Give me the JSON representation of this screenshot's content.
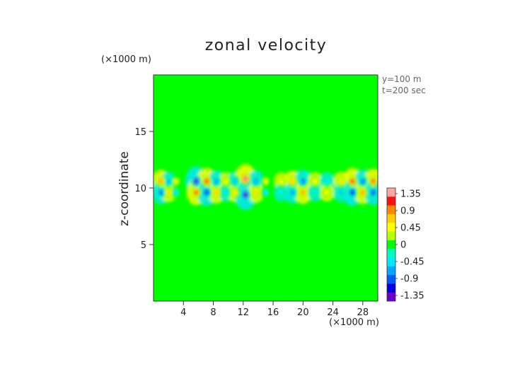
{
  "chart_data": {
    "type": "heatmap",
    "title": "zonal velocity",
    "ylabel": "z-coordinate",
    "y_unit": "(×1000 m)",
    "x_unit": "(×1000 m)",
    "annotations": [
      "y=100 m",
      "t=200 sec"
    ],
    "xlim": [
      0,
      30
    ],
    "ylim": [
      0,
      20
    ],
    "x_ticks": [
      4,
      8,
      12,
      16,
      20,
      24,
      28
    ],
    "y_ticks": [
      5,
      10,
      15
    ],
    "grid": false,
    "legend": "right (colorbar)",
    "colorbar": {
      "range": [
        -1.5,
        1.5
      ],
      "tick_values": [
        1.35,
        0.9,
        0.45,
        0,
        -0.45,
        -0.9,
        -1.35
      ],
      "tick_labels": [
        "1.35",
        "0.9",
        "0.45",
        "0",
        "-0.45",
        "-0.9",
        "-1.35"
      ],
      "colors": [
        "#ffa8a8",
        "#ff1010",
        "#ff8800",
        "#ffd000",
        "#ffff00",
        "#b8ff00",
        "#00ff00",
        "#00ffbb",
        "#00e8ff",
        "#00a8ff",
        "#0058ff",
        "#0000e0",
        "#6a00c8"
      ]
    },
    "background_value": 0,
    "features": [
      {
        "x": 1.0,
        "z": 10.6,
        "value": 0.9
      },
      {
        "x": 1.0,
        "z": 9.6,
        "value": -0.9
      },
      {
        "x": 2.0,
        "z": 10.6,
        "value": -0.6
      },
      {
        "x": 2.0,
        "z": 9.6,
        "value": 0.6
      },
      {
        "x": 3.0,
        "z": 10.6,
        "value": 0.4
      },
      {
        "x": 3.0,
        "z": 9.6,
        "value": -0.4
      },
      {
        "x": 5.7,
        "z": 10.6,
        "value": -1.4
      },
      {
        "x": 5.7,
        "z": 9.6,
        "value": 1.1
      },
      {
        "x": 7.1,
        "z": 10.6,
        "value": 1.2
      },
      {
        "x": 7.1,
        "z": 9.6,
        "value": -1.2
      },
      {
        "x": 8.4,
        "z": 10.6,
        "value": -0.8
      },
      {
        "x": 8.4,
        "z": 9.6,
        "value": 0.8
      },
      {
        "x": 9.7,
        "z": 10.6,
        "value": 0.5
      },
      {
        "x": 9.7,
        "z": 9.6,
        "value": -0.5
      },
      {
        "x": 10.9,
        "z": 10.6,
        "value": -0.6
      },
      {
        "x": 10.9,
        "z": 9.6,
        "value": 0.6
      },
      {
        "x": 12.3,
        "z": 10.8,
        "value": 1.45
      },
      {
        "x": 12.3,
        "z": 9.4,
        "value": -1.5
      },
      {
        "x": 13.7,
        "z": 10.6,
        "value": -0.8
      },
      {
        "x": 13.7,
        "z": 9.6,
        "value": 0.7
      },
      {
        "x": 15.0,
        "z": 10.6,
        "value": 0.4
      },
      {
        "x": 15.0,
        "z": 9.6,
        "value": -0.4
      },
      {
        "x": 17.1,
        "z": 10.6,
        "value": 0.5
      },
      {
        "x": 17.1,
        "z": 9.6,
        "value": -0.5
      },
      {
        "x": 18.6,
        "z": 10.6,
        "value": 0.8
      },
      {
        "x": 18.6,
        "z": 9.6,
        "value": -0.8
      },
      {
        "x": 20.0,
        "z": 10.6,
        "value": -0.9
      },
      {
        "x": 20.0,
        "z": 9.6,
        "value": 0.9
      },
      {
        "x": 21.6,
        "z": 10.6,
        "value": 0.5
      },
      {
        "x": 21.6,
        "z": 9.6,
        "value": -0.5
      },
      {
        "x": 23.2,
        "z": 10.6,
        "value": -0.5
      },
      {
        "x": 23.2,
        "z": 9.6,
        "value": 0.5
      },
      {
        "x": 25.1,
        "z": 10.6,
        "value": 0.6
      },
      {
        "x": 25.1,
        "z": 9.6,
        "value": -0.6
      },
      {
        "x": 26.6,
        "z": 10.6,
        "value": 1.2
      },
      {
        "x": 26.6,
        "z": 9.6,
        "value": -1.2
      },
      {
        "x": 28.0,
        "z": 10.6,
        "value": -0.9
      },
      {
        "x": 28.0,
        "z": 9.6,
        "value": 0.9
      },
      {
        "x": 29.4,
        "z": 10.6,
        "value": 1.1
      },
      {
        "x": 29.4,
        "z": 9.6,
        "value": -1.1
      }
    ]
  }
}
